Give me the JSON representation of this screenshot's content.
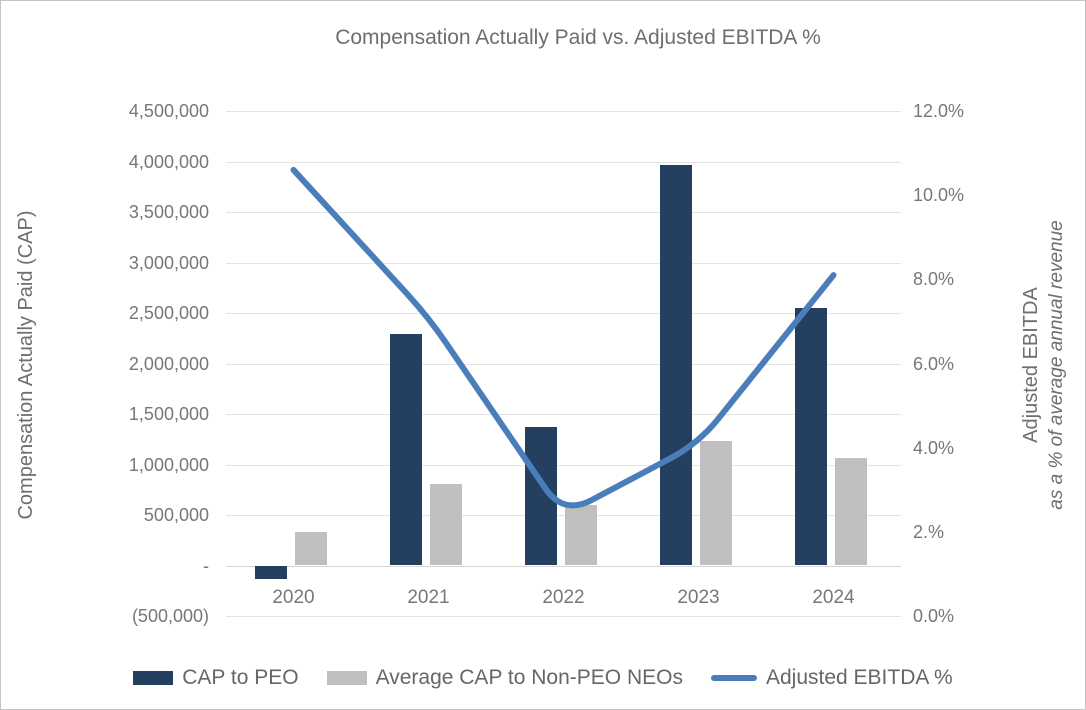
{
  "chart": {
    "title": "Compensation Actually Paid vs. Adjusted EBITDA %",
    "left_axis_title": "Compensation Actually Paid (CAP)",
    "right_axis_title_line1": "Adjusted EBITDA",
    "right_axis_title_line2": "as a % of average annual revenue",
    "left_tick_labels": [
      "4,500,000",
      "4,000,000",
      "3,500,000",
      "3,000,000",
      "2,500,000",
      "2,000,000",
      "1,500,000",
      "1,000,000",
      "500,000",
      "-",
      "(500,000)"
    ],
    "right_tick_labels": [
      "12.0%",
      "10.0%",
      "8.0%",
      "6.0%",
      "4.0%",
      "2.%",
      "0.0%"
    ]
  },
  "chart_data": {
    "type": "bar",
    "subtype": "combo-bar-line",
    "title": "Compensation Actually Paid vs. Adjusted EBITDA %",
    "categories": [
      "2020",
      "2021",
      "2022",
      "2023",
      "2024"
    ],
    "series": [
      {
        "name": "CAP to PEO",
        "type": "bar",
        "axis": "left",
        "color": "#243F60",
        "values": [
          -130000,
          2290000,
          1370000,
          3970000,
          2550000
        ]
      },
      {
        "name": "Average CAP to Non-PEO NEOs",
        "type": "bar",
        "axis": "left",
        "color": "#BFBFBF",
        "values": [
          330000,
          810000,
          600000,
          1230000,
          1060000
        ]
      },
      {
        "name": "Adjusted EBITDA %",
        "type": "line",
        "axis": "right",
        "color": "#4A7EBB",
        "values": [
          10.6,
          7.1,
          2.4,
          4.1,
          8.1
        ]
      }
    ],
    "xlabel": "",
    "ylabel_left": "Compensation Actually Paid (CAP)",
    "ylabel_right": "Adjusted EBITDA as a % of average annual revenue",
    "left_ylim": [
      -500000,
      4500000
    ],
    "left_step": 500000,
    "right_ylim": [
      0,
      12
    ],
    "right_step": 2,
    "grid": true,
    "legend_position": "bottom"
  },
  "colors": {
    "bar_peo": "#243F60",
    "bar_neo": "#BFBFBF",
    "line_ebitda": "#4A7EBB",
    "gridline": "#E4E4E4",
    "zero_line": "#D6D6D6",
    "text_gray": "#777777",
    "title_gray": "#6E6E6E"
  }
}
